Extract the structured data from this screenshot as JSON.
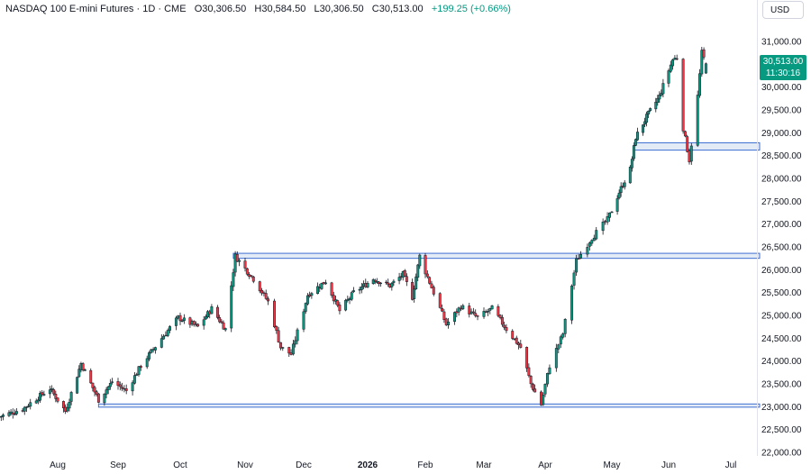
{
  "header": {
    "symbol": "NASDAQ 100 E-mini Futures",
    "interval": "1D",
    "exchange": "CME",
    "open_label": "O",
    "open": "30,306.50",
    "high_label": "H",
    "high": "30,584.50",
    "low_label": "L",
    "low": "30,306.50",
    "close_label": "C",
    "close": "30,513.00",
    "change": "+199.25 (+0.66%)"
  },
  "currency": "USD",
  "last_price": {
    "value": "30,513.00",
    "countdown": "11:30:16"
  },
  "colors": {
    "up": "#089981",
    "down": "#f23645",
    "zone_fill": "#e3ebf7",
    "zone_stroke": "#3f6fd1"
  },
  "chart_data": {
    "type": "candlestick",
    "y_ticks": [
      "22,000.00",
      "22,500.00",
      "23,000.00",
      "23,500.00",
      "24,000.00",
      "24,500.00",
      "25,000.00",
      "25,500.00",
      "26,000.00",
      "26,500.00",
      "27,000.00",
      "27,500.00",
      "28,000.00",
      "28,500.00",
      "29,000.00",
      "29,500.00",
      "30,000.00",
      "31,000.00"
    ],
    "x_ticks": [
      {
        "label": "Aug",
        "date": "2025-08-01",
        "bold": false
      },
      {
        "label": "Sep",
        "date": "2025-09-01",
        "bold": false
      },
      {
        "label": "Oct",
        "date": "2025-10-01",
        "bold": false
      },
      {
        "label": "Nov",
        "date": "2025-11-03",
        "bold": false
      },
      {
        "label": "Dec",
        "date": "2025-12-01",
        "bold": false
      },
      {
        "label": "2026",
        "date": "2026-01-02",
        "bold": true
      },
      {
        "label": "Feb",
        "date": "2026-02-02",
        "bold": false
      },
      {
        "label": "Mar",
        "date": "2026-03-02",
        "bold": false
      },
      {
        "label": "Apr",
        "date": "2026-04-01",
        "bold": false
      },
      {
        "label": "May",
        "date": "2026-05-01",
        "bold": false
      },
      {
        "label": "Jun",
        "date": "2026-06-01",
        "bold": false
      },
      {
        "label": "Jul",
        "date": "2026-07-01",
        "bold": false
      }
    ],
    "ylim": [
      21980,
      31250
    ],
    "zones": [
      {
        "start": "2025-10-28",
        "low": 26250,
        "high": 26360
      },
      {
        "start": "2025-08-22",
        "low": 22990,
        "high": 23060
      },
      {
        "start": "2026-05-13",
        "low": 28620,
        "high": 28780
      }
    ],
    "close_anchors": [
      [
        "2025-07-02",
        22780
      ],
      [
        "2025-07-14",
        22950
      ],
      [
        "2025-07-28",
        23400
      ],
      [
        "2025-08-05",
        22900
      ],
      [
        "2025-08-13",
        23950
      ],
      [
        "2025-08-22",
        23150
      ],
      [
        "2025-08-29",
        23550
      ],
      [
        "2025-09-05",
        23350
      ],
      [
        "2025-09-12",
        23900
      ],
      [
        "2025-09-22",
        24500
      ],
      [
        "2025-09-30",
        24950
      ],
      [
        "2025-10-10",
        24750
      ],
      [
        "2025-10-17",
        25150
      ],
      [
        "2025-10-24",
        24700
      ],
      [
        "2025-10-29",
        26300
      ],
      [
        "2025-11-07",
        25800
      ],
      [
        "2025-11-14",
        25300
      ],
      [
        "2025-11-20",
        24300
      ],
      [
        "2025-11-25",
        24150
      ],
      [
        "2025-12-03",
        25450
      ],
      [
        "2025-12-12",
        25750
      ],
      [
        "2025-12-19",
        25100
      ],
      [
        "2025-12-26",
        25500
      ],
      [
        "2026-01-05",
        25800
      ],
      [
        "2026-01-14",
        25650
      ],
      [
        "2026-01-21",
        25900
      ],
      [
        "2026-01-26",
        25400
      ],
      [
        "2026-01-30",
        26300
      ],
      [
        "2026-02-06",
        25500
      ],
      [
        "2026-02-12",
        24800
      ],
      [
        "2026-02-19",
        25200
      ],
      [
        "2026-02-27",
        24950
      ],
      [
        "2026-03-06",
        25150
      ],
      [
        "2026-03-13",
        24700
      ],
      [
        "2026-03-20",
        24300
      ],
      [
        "2026-03-25",
        23500
      ],
      [
        "2026-03-30",
        23050
      ],
      [
        "2026-04-03",
        23900
      ],
      [
        "2026-04-09",
        24600
      ],
      [
        "2026-04-15",
        26200
      ],
      [
        "2026-04-22",
        26700
      ],
      [
        "2026-04-29",
        27100
      ],
      [
        "2026-05-05",
        27700
      ],
      [
        "2026-05-11",
        28200
      ],
      [
        "2026-05-14",
        28900
      ],
      [
        "2026-05-20",
        29350
      ],
      [
        "2026-05-27",
        29800
      ],
      [
        "2026-06-03",
        30600
      ],
      [
        "2026-06-05",
        30650
      ],
      [
        "2026-06-08",
        29100
      ],
      [
        "2026-06-11",
        28400
      ],
      [
        "2026-06-15",
        29800
      ],
      [
        "2026-06-17",
        30750
      ],
      [
        "2026-06-19",
        30513
      ]
    ]
  }
}
